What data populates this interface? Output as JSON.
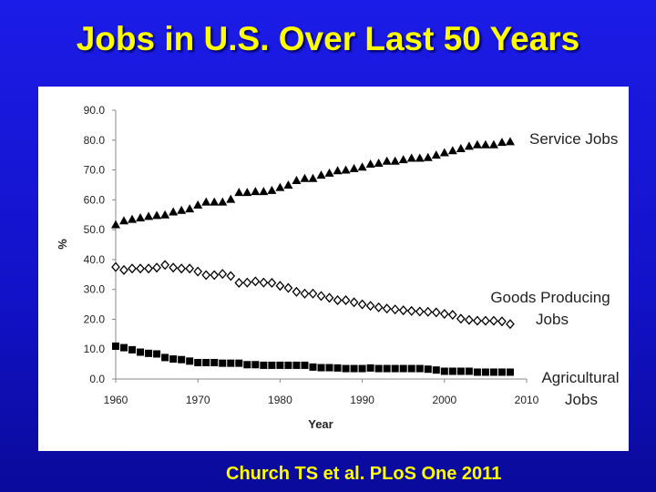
{
  "slide": {
    "title": "Jobs in U.S. Over Last 50 Years",
    "citation": "Church TS et al. PLoS One 2011",
    "colors": {
      "background": "#1414d0",
      "title": "#ffff00",
      "panel": "#ffffff"
    }
  },
  "chart_data": {
    "type": "scatter",
    "title": "",
    "xlabel": "Year",
    "ylabel": "%",
    "xlim": [
      1960,
      2010
    ],
    "ylim": [
      0,
      90
    ],
    "grid": false,
    "x_ticks": [
      "1960",
      "1970",
      "1980",
      "1990",
      "2000",
      "2010"
    ],
    "y_ticks": [
      "0.0",
      "10.0",
      "20.0",
      "30.0",
      "40.0",
      "50.0",
      "60.0",
      "70.0",
      "80.0",
      "90.0"
    ],
    "x_start": 1960,
    "series": [
      {
        "name": "Service Jobs",
        "label_lines": [
          "Service Jobs"
        ],
        "marker": "triangle",
        "values": [
          51.7,
          53,
          53.5,
          54,
          54.5,
          54.8,
          55,
          56,
          56.5,
          57,
          58.3,
          59.3,
          59.3,
          59.3,
          60.2,
          62.5,
          62.5,
          62.8,
          62.8,
          63.2,
          64.2,
          65,
          66.5,
          67.2,
          67.2,
          68.3,
          69,
          69.8,
          70,
          70.5,
          71,
          72,
          72.3,
          73,
          73,
          73.5,
          74,
          74,
          74.2,
          75,
          75.8,
          76.5,
          77.2,
          78,
          78.5,
          78.5,
          78.5,
          79.3,
          79.5
        ]
      },
      {
        "name": "Goods Producing Jobs",
        "label_lines": [
          "Goods Producing",
          "Jobs"
        ],
        "marker": "diamond-open",
        "values": [
          37.5,
          36.5,
          37,
          37,
          37,
          37.3,
          38.2,
          37.3,
          37,
          37,
          36,
          34.8,
          34.8,
          35.2,
          34.5,
          32.2,
          32.3,
          32.7,
          32.3,
          32.2,
          31.2,
          30.5,
          29.2,
          28.6,
          28.6,
          27.8,
          27.2,
          26.4,
          26.4,
          25.7,
          25,
          24.5,
          24,
          23.6,
          23.3,
          23,
          22.8,
          22.6,
          22.5,
          22.3,
          21.8,
          21.5,
          20.2,
          19.8,
          19.5,
          19.5,
          19.5,
          19.3,
          18.4
        ]
      },
      {
        "name": "Agricultural Jobs",
        "label_lines": [
          "Agricultural",
          "Jobs"
        ],
        "marker": "square",
        "values": [
          11,
          10.5,
          9.8,
          9,
          8.6,
          8.4,
          7.2,
          6.7,
          6.5,
          6,
          5.5,
          5.5,
          5.5,
          5.3,
          5.3,
          5.3,
          4.8,
          4.8,
          4.6,
          4.6,
          4.6,
          4.6,
          4.6,
          4.6,
          4,
          3.8,
          3.8,
          3.7,
          3.5,
          3.5,
          3.5,
          3.7,
          3.5,
          3.5,
          3.5,
          3.5,
          3.5,
          3.5,
          3.3,
          3,
          2.6,
          2.6,
          2.6,
          2.6,
          2.3,
          2.3,
          2.3,
          2.3,
          2.3
        ]
      }
    ]
  }
}
